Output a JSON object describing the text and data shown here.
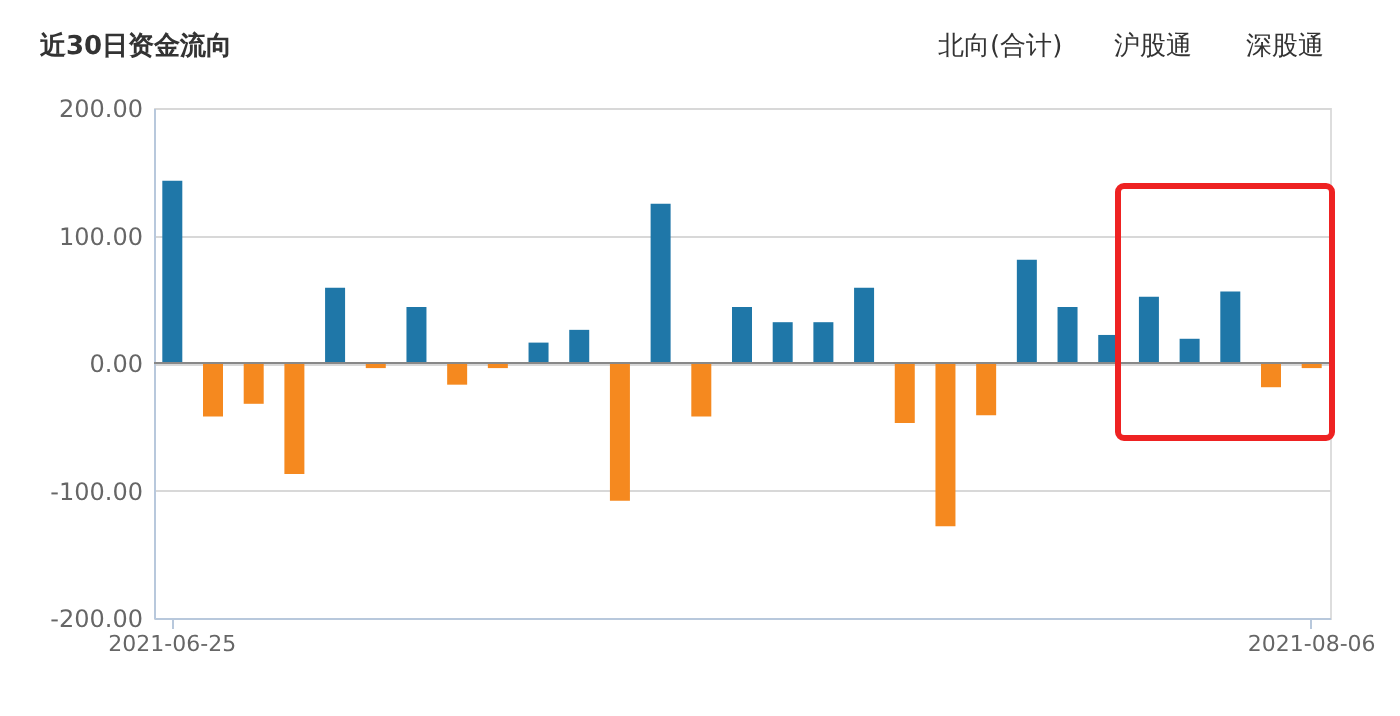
{
  "chart_data": {
    "type": "bar",
    "title": "近30日资金流向",
    "annotations": [
      "北向(合计)",
      "沪股通",
      "深股通"
    ],
    "categories": [
      "2021-06-25",
      null,
      null,
      null,
      null,
      null,
      null,
      null,
      null,
      null,
      null,
      null,
      null,
      null,
      null,
      null,
      null,
      null,
      null,
      null,
      null,
      null,
      null,
      null,
      null,
      null,
      null,
      null,
      "2021-08-06"
    ],
    "values": [
      143,
      -42,
      -32,
      -87,
      59,
      -4,
      44,
      -17,
      -4,
      16,
      26,
      -108,
      125,
      -42,
      44,
      32,
      32,
      59,
      -47,
      -128,
      -41,
      81,
      44,
      22,
      52,
      19,
      56,
      -19,
      -4
    ],
    "colors": [
      "#1f77a8",
      "#f5891f",
      "#f5891f",
      "#f5891f",
      "#1f77a8",
      "#f5891f",
      "#1f77a8",
      "#f5891f",
      "#f5891f",
      "#1f77a8",
      "#1f77a8",
      "#f5891f",
      "#1f77a8",
      "#f5891f",
      "#1f77a8",
      "#1f77a8",
      "#1f77a8",
      "#1f77a8",
      "#f5891f",
      "#f5891f",
      "#f5891f",
      "#1f77a8",
      "#1f77a8",
      "#1f77a8",
      "#1f77a8",
      "#1f77a8",
      "#1f77a8",
      "#f5891f",
      "#f5891f"
    ],
    "ylim": [
      -200,
      200
    ],
    "yticks": [
      {
        "value": -200,
        "label": "-200.00"
      },
      {
        "value": -100,
        "label": "-100.00"
      },
      {
        "value": 0,
        "label": "0.00"
      },
      {
        "value": 100,
        "label": "100.00"
      },
      {
        "value": 200,
        "label": "200.00"
      }
    ],
    "grid": "y"
  }
}
